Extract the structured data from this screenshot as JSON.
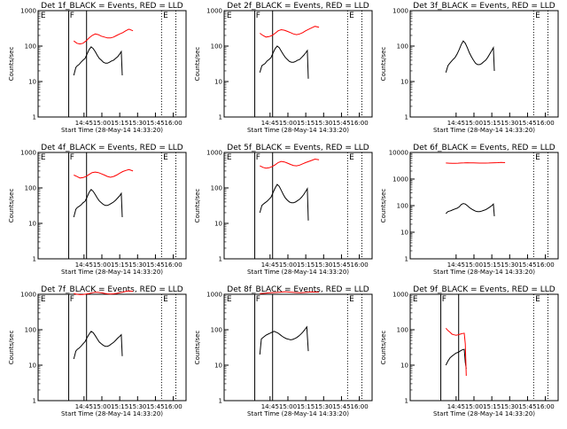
{
  "chart_data": [
    {
      "type": "line",
      "title": "Det 1f_BLACK = Events, RED = LLD",
      "xlabel": "Start Time (28-May-14 14:33:20)",
      "ylabel": "Counts/sec",
      "xticks": [
        "14:45",
        "15:00",
        "15:15",
        "15:30",
        "15:45",
        "16:00"
      ],
      "yticks": [
        "1",
        "10",
        "100",
        "1000"
      ],
      "annotations": [
        "E",
        "F",
        "E"
      ],
      "colors": {
        "events": "#000000",
        "lld": "#ff0000"
      },
      "series": [
        {
          "role": "events",
          "x": [
            0.0,
            0.04,
            0.07,
            0.1,
            0.14,
            0.18,
            0.22,
            0.26,
            0.3,
            0.34,
            0.38,
            0.42,
            0.46,
            0.5,
            0.54,
            0.58,
            0.62,
            0.66,
            0.7,
            0.74,
            0.78,
            0.82,
            0.86,
            0.9,
            0.93,
            0.95
          ],
          "y": [
            15,
            25,
            28,
            30,
            35,
            40,
            45,
            60,
            80,
            95,
            85,
            70,
            55,
            45,
            40,
            35,
            33,
            33,
            35,
            38,
            40,
            45,
            50,
            60,
            70,
            15
          ]
        },
        {
          "role": "lld",
          "x": [
            0.0,
            0.06,
            0.12,
            0.18,
            0.24,
            0.3,
            0.36,
            0.42,
            0.48,
            0.54,
            0.6,
            0.66,
            0.72,
            0.78,
            0.84,
            0.9,
            0.96,
            1.02,
            1.08,
            1.16
          ],
          "y": [
            140,
            120,
            115,
            120,
            140,
            170,
            200,
            220,
            210,
            190,
            180,
            170,
            170,
            180,
            200,
            220,
            240,
            270,
            300,
            270
          ]
        }
      ]
    },
    {
      "type": "line",
      "title": "Det 2f_BLACK = Events, RED = LLD",
      "xlabel": "Start Time (28-May-14 14:33:20)",
      "ylabel": "Counts/sec",
      "xticks": [
        "14:45",
        "15:00",
        "15:15",
        "15:30",
        "15:45",
        "16:00"
      ],
      "yticks": [
        "1",
        "10",
        "100",
        "1000"
      ],
      "annotations": [
        "E",
        "F",
        "E"
      ],
      "colors": {
        "events": "#000000",
        "lld": "#ff0000"
      },
      "series": [
        {
          "role": "events",
          "x": [
            0.0,
            0.04,
            0.07,
            0.1,
            0.14,
            0.18,
            0.22,
            0.26,
            0.3,
            0.34,
            0.38,
            0.42,
            0.46,
            0.5,
            0.54,
            0.58,
            0.62,
            0.66,
            0.7,
            0.74,
            0.78,
            0.82,
            0.86,
            0.9,
            0.93,
            0.95
          ],
          "y": [
            18,
            28,
            30,
            32,
            38,
            42,
            48,
            65,
            85,
            100,
            90,
            72,
            58,
            48,
            42,
            37,
            35,
            35,
            37,
            40,
            42,
            48,
            55,
            65,
            75,
            12
          ]
        },
        {
          "role": "lld",
          "x": [
            0.0,
            0.06,
            0.12,
            0.18,
            0.24,
            0.3,
            0.36,
            0.42,
            0.48,
            0.54,
            0.6,
            0.66,
            0.72,
            0.78,
            0.84,
            0.9,
            0.96,
            1.02,
            1.08,
            1.16
          ],
          "y": [
            230,
            200,
            180,
            185,
            200,
            230,
            270,
            290,
            280,
            260,
            240,
            220,
            210,
            220,
            240,
            270,
            300,
            330,
            360,
            340
          ]
        }
      ]
    },
    {
      "type": "line",
      "title": "Det 3f_BLACK = Events, RED = LLD",
      "xlabel": "Start Time (28-May-14 14:33:20)",
      "ylabel": "Counts/sec",
      "xticks": [
        "14:45",
        "15:00",
        "15:15",
        "15:30",
        "15:45",
        "16:00"
      ],
      "yticks": [
        "1",
        "10",
        "100",
        "1000"
      ],
      "annotations": [
        "E"
      ],
      "colors": {
        "events": "#000000",
        "lld": "#ff0000"
      },
      "series": [
        {
          "role": "events",
          "x": [
            0.0,
            0.04,
            0.07,
            0.1,
            0.14,
            0.18,
            0.22,
            0.26,
            0.3,
            0.34,
            0.38,
            0.42,
            0.46,
            0.5,
            0.54,
            0.58,
            0.62,
            0.66,
            0.7,
            0.74,
            0.78,
            0.82,
            0.86,
            0.9,
            0.93,
            0.95
          ],
          "y": [
            18,
            28,
            32,
            36,
            42,
            48,
            60,
            80,
            110,
            140,
            120,
            90,
            65,
            50,
            40,
            33,
            30,
            30,
            32,
            36,
            40,
            48,
            60,
            75,
            90,
            20
          ]
        }
      ]
    },
    {
      "type": "line",
      "title": "Det 4f_BLACK = Events, RED = LLD",
      "xlabel": "Start Time (28-May-14 14:33:20)",
      "ylabel": "Counts/sec",
      "xticks": [
        "14:45",
        "15:00",
        "15:15",
        "15:30",
        "15:45",
        "16:00"
      ],
      "yticks": [
        "1",
        "10",
        "100",
        "1000"
      ],
      "annotations": [
        "E",
        "F",
        "E"
      ],
      "colors": {
        "events": "#000000",
        "lld": "#ff0000"
      },
      "series": [
        {
          "role": "events",
          "x": [
            0.0,
            0.04,
            0.07,
            0.1,
            0.14,
            0.18,
            0.22,
            0.26,
            0.3,
            0.34,
            0.38,
            0.42,
            0.46,
            0.5,
            0.54,
            0.58,
            0.62,
            0.66,
            0.7,
            0.74,
            0.78,
            0.82,
            0.86,
            0.9,
            0.93,
            0.95
          ],
          "y": [
            15,
            25,
            28,
            30,
            33,
            38,
            42,
            55,
            75,
            90,
            80,
            65,
            52,
            43,
            38,
            34,
            32,
            32,
            34,
            37,
            40,
            45,
            52,
            60,
            70,
            15
          ]
        },
        {
          "role": "lld",
          "x": [
            0.0,
            0.06,
            0.12,
            0.18,
            0.24,
            0.3,
            0.36,
            0.42,
            0.48,
            0.54,
            0.6,
            0.66,
            0.72,
            0.78,
            0.84,
            0.9,
            0.96,
            1.02,
            1.08,
            1.16
          ],
          "y": [
            230,
            210,
            190,
            195,
            210,
            240,
            270,
            280,
            270,
            250,
            230,
            210,
            200,
            210,
            230,
            260,
            290,
            310,
            330,
            300
          ]
        }
      ]
    },
    {
      "type": "line",
      "title": "Det 5f_BLACK = Events, RED = LLD",
      "xlabel": "Start Time (28-May-14 14:33:20)",
      "ylabel": "Counts/sec",
      "xticks": [
        "14:45",
        "15:00",
        "15:15",
        "15:30",
        "15:45",
        "16:00"
      ],
      "yticks": [
        "1",
        "10",
        "100",
        "1000"
      ],
      "annotations": [
        "E",
        "F",
        "E"
      ],
      "colors": {
        "events": "#000000",
        "lld": "#ff0000"
      },
      "series": [
        {
          "role": "events",
          "x": [
            0.0,
            0.04,
            0.07,
            0.1,
            0.14,
            0.18,
            0.22,
            0.26,
            0.3,
            0.34,
            0.38,
            0.42,
            0.46,
            0.5,
            0.54,
            0.58,
            0.62,
            0.66,
            0.7,
            0.74,
            0.78,
            0.82,
            0.86,
            0.9,
            0.93,
            0.95
          ],
          "y": [
            20,
            32,
            35,
            38,
            42,
            48,
            55,
            75,
            100,
            125,
            110,
            85,
            65,
            52,
            45,
            40,
            38,
            38,
            40,
            44,
            48,
            55,
            65,
            80,
            95,
            12
          ]
        },
        {
          "role": "lld",
          "x": [
            0.0,
            0.06,
            0.12,
            0.18,
            0.24,
            0.3,
            0.36,
            0.42,
            0.48,
            0.54,
            0.6,
            0.66,
            0.72,
            0.78,
            0.84,
            0.9,
            0.96,
            1.02,
            1.08,
            1.16
          ],
          "y": [
            420,
            380,
            360,
            370,
            400,
            450,
            520,
            560,
            540,
            500,
            460,
            430,
            420,
            440,
            480,
            520,
            560,
            600,
            650,
            620
          ]
        }
      ]
    },
    {
      "type": "line",
      "title": "Det 6f_BLACK = Events, RED = LLD",
      "xlabel": "Start Time (28-May-14 14:33:20)",
      "ylabel": "Counts/sec",
      "xticks": [
        "14:45",
        "15:00",
        "15:15",
        "15:30",
        "15:45",
        "16:00"
      ],
      "yticks": [
        "1",
        "10",
        "100",
        "1000",
        "10000"
      ],
      "annotations": [
        "E"
      ],
      "colors": {
        "events": "#000000",
        "lld": "#ff0000"
      },
      "series": [
        {
          "role": "events",
          "x": [
            0.0,
            0.04,
            0.07,
            0.1,
            0.14,
            0.18,
            0.22,
            0.26,
            0.3,
            0.34,
            0.38,
            0.42,
            0.46,
            0.5,
            0.54,
            0.58,
            0.62,
            0.66,
            0.7,
            0.74,
            0.78,
            0.82,
            0.86,
            0.9,
            0.93,
            0.95
          ],
          "y": [
            50,
            60,
            62,
            65,
            70,
            75,
            80,
            90,
            110,
            120,
            115,
            100,
            85,
            75,
            68,
            62,
            60,
            60,
            62,
            66,
            70,
            78,
            88,
            100,
            115,
            40
          ]
        },
        {
          "role": "lld",
          "x": [
            0.0,
            0.06,
            0.12,
            0.18,
            0.24,
            0.3,
            0.36,
            0.42,
            0.48,
            0.54,
            0.6,
            0.66,
            0.72,
            0.78,
            0.84,
            0.9,
            0.96,
            1.02,
            1.08,
            1.16
          ],
          "y": [
            4000,
            3950,
            3900,
            3920,
            3950,
            4000,
            4050,
            4100,
            4080,
            4050,
            4000,
            3980,
            3970,
            3990,
            4020,
            4060,
            4100,
            4150,
            4200,
            4150
          ]
        }
      ]
    },
    {
      "type": "line",
      "title": "Det 7f_BLACK = Events, RED = LLD",
      "xlabel": "Start Time (28-May-14 14:33:20)",
      "ylabel": "Counts/sec",
      "xticks": [
        "14:45",
        "15:00",
        "15:15",
        "15:30",
        "15:45",
        "16:00"
      ],
      "yticks": [
        "1",
        "10",
        "100",
        "1000"
      ],
      "annotations": [
        "E",
        "F",
        "E"
      ],
      "colors": {
        "events": "#000000",
        "lld": "#ff0000"
      },
      "series": [
        {
          "role": "events",
          "x": [
            0.0,
            0.04,
            0.07,
            0.1,
            0.14,
            0.18,
            0.22,
            0.26,
            0.3,
            0.34,
            0.38,
            0.42,
            0.46,
            0.5,
            0.54,
            0.58,
            0.62,
            0.66,
            0.7,
            0.74,
            0.78,
            0.82,
            0.86,
            0.9,
            0.93,
            0.95
          ],
          "y": [
            15,
            25,
            28,
            30,
            34,
            40,
            46,
            60,
            75,
            90,
            82,
            68,
            55,
            45,
            40,
            36,
            34,
            34,
            36,
            40,
            44,
            50,
            58,
            65,
            72,
            18
          ]
        },
        {
          "role": "lld",
          "x": [
            0.0,
            0.06,
            0.12,
            0.18,
            0.24,
            0.3,
            0.36,
            0.42,
            0.48,
            0.54,
            0.6,
            0.66,
            0.72,
            0.78,
            0.84,
            0.9,
            0.96,
            1.02,
            1.08,
            1.16
          ],
          "y": [
            1050,
            1000,
            980,
            990,
            1010,
            1050,
            1100,
            1150,
            1130,
            1100,
            1060,
            1030,
            1020,
            1030,
            1060,
            1100,
            1150,
            1200,
            1250,
            1200
          ]
        }
      ]
    },
    {
      "type": "line",
      "title": "Det 8f_BLACK = Events, RED = LLD",
      "xlabel": "Start Time (28-May-14 14:33:20)",
      "ylabel": "Counts/sec",
      "xticks": [
        "14:45",
        "15:00",
        "15:15",
        "15:30",
        "15:45",
        "16:00"
      ],
      "yticks": [
        "1",
        "10",
        "100",
        "1000"
      ],
      "annotations": [
        "E",
        "F",
        "E"
      ],
      "colors": {
        "events": "#000000",
        "lld": "#ff0000"
      },
      "series": [
        {
          "role": "events",
          "x": [
            0.0,
            0.03,
            0.06,
            0.09,
            0.12,
            0.16,
            0.2,
            0.24,
            0.28,
            0.32,
            0.36,
            0.4,
            0.44,
            0.48,
            0.52,
            0.56,
            0.6,
            0.64,
            0.68,
            0.72,
            0.76,
            0.8,
            0.84,
            0.88,
            0.92,
            0.95
          ],
          "y": [
            20,
            55,
            60,
            65,
            70,
            75,
            80,
            85,
            90,
            85,
            80,
            72,
            65,
            60,
            56,
            54,
            52,
            53,
            56,
            60,
            66,
            74,
            85,
            100,
            120,
            25
          ]
        },
        {
          "role": "lld",
          "x": [
            0.0,
            0.1,
            0.2,
            0.3,
            0.4,
            0.5,
            0.6,
            0.7,
            0.8,
            0.9,
            1.0,
            1.16
          ],
          "y": [
            1050,
            1080,
            1100,
            1120,
            1150,
            1180,
            1150,
            1120,
            1100,
            1130,
            1160,
            1150
          ]
        }
      ]
    },
    {
      "type": "line",
      "title": "Det 9f_BLACK = Events, RED = LLD",
      "xlabel": "Start Time (28-May-14 14:33:20)",
      "ylabel": "Counts/sec",
      "xticks": [
        "14:45",
        "15:00",
        "15:15",
        "15:30",
        "15:45",
        "16:00"
      ],
      "yticks": [
        "1",
        "10",
        "100",
        "1000"
      ],
      "annotations": [
        "E",
        "F",
        "E"
      ],
      "colors": {
        "events": "#000000",
        "lld": "#ff0000"
      },
      "series": [
        {
          "role": "events",
          "x": [
            0.0,
            0.04,
            0.08,
            0.12,
            0.16,
            0.2,
            0.24,
            0.28,
            0.32,
            0.36,
            0.38,
            0.4
          ],
          "y": [
            10,
            13,
            16,
            18,
            20,
            22,
            23,
            25,
            27,
            28,
            12,
            8
          ]
        },
        {
          "role": "lld",
          "x": [
            0.0,
            0.04,
            0.08,
            0.12,
            0.16,
            0.2,
            0.24,
            0.28,
            0.32,
            0.36,
            0.38,
            0.4
          ],
          "y": [
            110,
            95,
            85,
            75,
            72,
            70,
            72,
            75,
            78,
            80,
            40,
            5
          ]
        }
      ]
    }
  ]
}
